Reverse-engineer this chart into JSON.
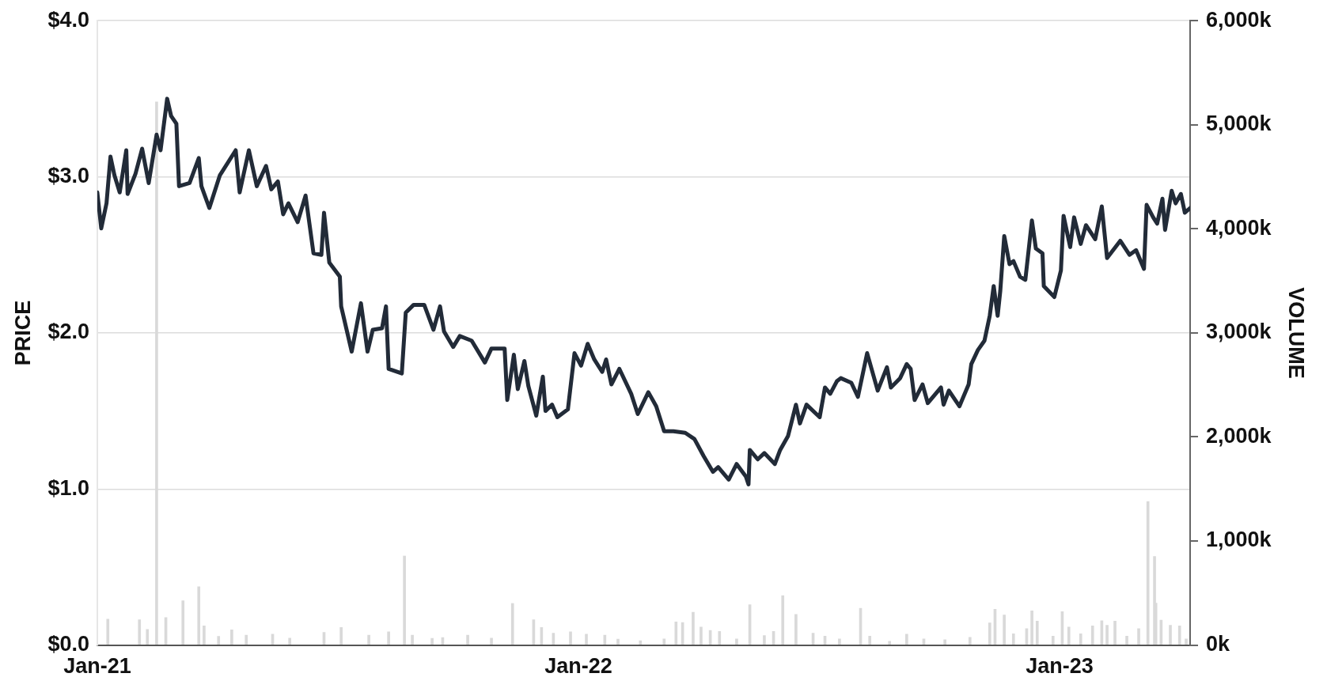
{
  "chart_data": {
    "type": "line",
    "ylabel": "PRICE",
    "y2label": "VOLUME",
    "xlim": [
      "2021-01-01",
      "2023-04-10"
    ],
    "xticks": [
      {
        "value": "2021-01-01",
        "label": "Jan-21"
      },
      {
        "value": "2022-01-01",
        "label": "Jan-22"
      },
      {
        "value": "2023-01-01",
        "label": "Jan-23"
      }
    ],
    "ylim": [
      0,
      4
    ],
    "yticks": [
      {
        "value": 0,
        "label": "$0.0"
      },
      {
        "value": 1,
        "label": "$1.0"
      },
      {
        "value": 2,
        "label": "$2.0"
      },
      {
        "value": 3,
        "label": "$3.0"
      },
      {
        "value": 4,
        "label": "$4.0"
      }
    ],
    "y2lim": [
      0,
      6000
    ],
    "y2ticks": [
      {
        "value": 0,
        "label": "0k"
      },
      {
        "value": 1000,
        "label": "1,000k"
      },
      {
        "value": 2000,
        "label": "2,000k"
      },
      {
        "value": 3000,
        "label": "3,000k"
      },
      {
        "value": 4000,
        "label": "4,000k"
      },
      {
        "value": 5000,
        "label": "5,000k"
      },
      {
        "value": 6000,
        "label": "6,000k"
      }
    ],
    "grid": "y",
    "legend": false,
    "marker": "none",
    "line_style": "solid",
    "series": [
      {
        "type": "bar",
        "axis": "y2",
        "color": "#d9d9d9",
        "x": [
          "2021-01-09",
          "2021-02-02",
          "2021-02-08",
          "2021-02-15",
          "2021-02-22",
          "2021-03-07",
          "2021-03-19",
          "2021-03-23",
          "2021-04-03",
          "2021-04-13",
          "2021-04-24",
          "2021-05-14",
          "2021-05-27",
          "2021-06-22",
          "2021-07-05",
          "2021-07-26",
          "2021-08-10",
          "2021-08-22",
          "2021-08-28",
          "2021-09-12",
          "2021-09-20",
          "2021-10-09",
          "2021-10-27",
          "2021-11-12",
          "2021-11-28",
          "2021-12-04",
          "2021-12-13",
          "2021-12-26",
          "2022-01-07",
          "2022-01-21",
          "2022-01-31",
          "2022-02-17",
          "2022-03-07",
          "2022-03-16",
          "2022-03-21",
          "2022-03-29",
          "2022-04-04",
          "2022-04-11",
          "2022-04-18",
          "2022-05-01",
          "2022-05-11",
          "2022-05-22",
          "2022-05-29",
          "2022-06-05",
          "2022-06-15",
          "2022-06-28",
          "2022-07-07",
          "2022-07-18",
          "2022-08-03",
          "2022-08-10",
          "2022-08-25",
          "2022-09-07",
          "2022-09-20",
          "2022-10-06",
          "2022-10-25",
          "2022-11-09",
          "2022-11-13",
          "2022-11-20",
          "2022-11-27",
          "2022-12-07",
          "2022-12-11",
          "2022-12-15",
          "2022-12-27",
          "2023-01-03",
          "2023-01-08",
          "2023-01-17",
          "2023-01-26",
          "2023-02-02",
          "2023-02-06",
          "2023-02-12",
          "2023-02-21",
          "2023-03-02",
          "2023-03-09",
          "2023-03-14",
          "2023-03-15",
          "2023-03-19",
          "2023-03-26",
          "2023-04-02",
          "2023-04-07"
        ],
        "values": [
          250,
          243,
          150,
          5220,
          265,
          425,
          560,
          185,
          83,
          147,
          96,
          105,
          67,
          121,
          170,
          96,
          128,
          856,
          96,
          64,
          73,
          96,
          67,
          400,
          243,
          170,
          115,
          128,
          105,
          96,
          58,
          42,
          59,
          223,
          216,
          315,
          174,
          141,
          131,
          59,
          387,
          92,
          131,
          475,
          295,
          115,
          85,
          59,
          354,
          85,
          36,
          105,
          59,
          52,
          75,
          213,
          344,
          289,
          108,
          157,
          328,
          230,
          85,
          321,
          174,
          108,
          184,
          233,
          190,
          230,
          85,
          157,
          1380,
          852,
          403,
          239,
          190,
          184,
          59
        ]
      },
      {
        "axis": "y",
        "color": "#222b38",
        "x": [
          "2021-01-01",
          "2021-01-04",
          "2021-01-08",
          "2021-01-11",
          "2021-01-14",
          "2021-01-18",
          "2021-01-23",
          "2021-01-24",
          "2021-01-30",
          "2021-02-04",
          "2021-02-09",
          "2021-02-15",
          "2021-02-18",
          "2021-02-23",
          "2021-02-26",
          "2021-03-02",
          "2021-03-04",
          "2021-03-12",
          "2021-03-19",
          "2021-03-21",
          "2021-03-27",
          "2021-04-04",
          "2021-04-16",
          "2021-04-19",
          "2021-04-26",
          "2021-05-02",
          "2021-05-09",
          "2021-05-13",
          "2021-05-18",
          "2021-05-22",
          "2021-05-26",
          "2021-06-02",
          "2021-06-08",
          "2021-06-14",
          "2021-06-20",
          "2021-06-22",
          "2021-06-26",
          "2021-07-04",
          "2021-07-05",
          "2021-07-13",
          "2021-07-20",
          "2021-07-25",
          "2021-07-29",
          "2021-08-05",
          "2021-08-08",
          "2021-08-10",
          "2021-08-20",
          "2021-08-23",
          "2021-08-29",
          "2021-09-06",
          "2021-09-13",
          "2021-09-18",
          "2021-09-21",
          "2021-09-28",
          "2021-10-03",
          "2021-10-12",
          "2021-10-22",
          "2021-10-27",
          "2021-11-06",
          "2021-11-08",
          "2021-11-13",
          "2021-11-16",
          "2021-11-21",
          "2021-11-24",
          "2021-11-30",
          "2021-12-05",
          "2021-12-07",
          "2021-12-12",
          "2021-12-16",
          "2021-12-24",
          "2021-12-29",
          "2022-01-03",
          "2022-01-08",
          "2022-01-13",
          "2022-01-19",
          "2022-01-22",
          "2022-01-26",
          "2022-02-01",
          "2022-02-10",
          "2022-02-15",
          "2022-02-23",
          "2022-03-01",
          "2022-03-07",
          "2022-03-14",
          "2022-03-23",
          "2022-03-30",
          "2022-04-06",
          "2022-04-13",
          "2022-04-17",
          "2022-04-25",
          "2022-05-01",
          "2022-05-08",
          "2022-05-10",
          "2022-05-11",
          "2022-05-17",
          "2022-05-22",
          "2022-05-30",
          "2022-06-03",
          "2022-06-09",
          "2022-06-15",
          "2022-06-18",
          "2022-06-23",
          "2022-07-03",
          "2022-07-07",
          "2022-07-11",
          "2022-07-16",
          "2022-07-19",
          "2022-07-27",
          "2022-08-01",
          "2022-08-08",
          "2022-08-16",
          "2022-08-23",
          "2022-08-26",
          "2022-09-02",
          "2022-09-07",
          "2022-09-10",
          "2022-09-13",
          "2022-09-19",
          "2022-09-23",
          "2022-10-03",
          "2022-10-05",
          "2022-10-09",
          "2022-10-17",
          "2022-10-24",
          "2022-10-26",
          "2022-10-31",
          "2022-11-05",
          "2022-11-09",
          "2022-11-12",
          "2022-11-15",
          "2022-11-17",
          "2022-11-20",
          "2022-11-24",
          "2022-11-27",
          "2022-12-02",
          "2022-12-06",
          "2022-12-11",
          "2022-12-14",
          "2022-12-19",
          "2022-12-20",
          "2022-12-28",
          "2023-01-02",
          "2023-01-04",
          "2023-01-09",
          "2023-01-12",
          "2023-01-17",
          "2023-01-21",
          "2023-01-28",
          "2023-02-02",
          "2023-02-06",
          "2023-02-16",
          "2023-02-23",
          "2023-02-28",
          "2023-03-06",
          "2023-03-08",
          "2023-03-13",
          "2023-03-16",
          "2023-03-20",
          "2023-03-22",
          "2023-03-27",
          "2023-03-30",
          "2023-04-03",
          "2023-04-06",
          "2023-04-10"
        ],
        "values": [
          2.9,
          2.67,
          2.83,
          3.13,
          3.01,
          2.9,
          3.17,
          2.89,
          3.02,
          3.18,
          2.96,
          3.27,
          3.17,
          3.5,
          3.39,
          3.34,
          2.94,
          2.96,
          3.12,
          2.94,
          2.8,
          3.01,
          3.17,
          2.9,
          3.17,
          2.94,
          3.07,
          2.92,
          2.97,
          2.76,
          2.83,
          2.71,
          2.88,
          2.51,
          2.5,
          2.77,
          2.45,
          2.36,
          2.17,
          1.88,
          2.19,
          1.88,
          2.02,
          2.03,
          2.17,
          1.77,
          1.74,
          2.13,
          2.18,
          2.18,
          2.02,
          2.17,
          2.01,
          1.91,
          1.98,
          1.95,
          1.81,
          1.9,
          1.9,
          1.57,
          1.86,
          1.64,
          1.82,
          1.66,
          1.47,
          1.72,
          1.5,
          1.54,
          1.46,
          1.51,
          1.87,
          1.79,
          1.93,
          1.83,
          1.75,
          1.83,
          1.67,
          1.77,
          1.61,
          1.48,
          1.62,
          1.53,
          1.37,
          1.37,
          1.36,
          1.32,
          1.21,
          1.11,
          1.14,
          1.06,
          1.16,
          1.08,
          1.03,
          1.25,
          1.19,
          1.23,
          1.16,
          1.25,
          1.34,
          1.54,
          1.42,
          1.54,
          1.46,
          1.65,
          1.61,
          1.69,
          1.71,
          1.68,
          1.59,
          1.87,
          1.63,
          1.78,
          1.65,
          1.71,
          1.8,
          1.77,
          1.57,
          1.67,
          1.55,
          1.65,
          1.54,
          1.63,
          1.53,
          1.67,
          1.8,
          1.89,
          1.95,
          2.11,
          2.3,
          2.11,
          2.27,
          2.62,
          2.44,
          2.46,
          2.36,
          2.34,
          2.72,
          2.54,
          2.51,
          2.3,
          2.23,
          2.4,
          2.75,
          2.55,
          2.74,
          2.57,
          2.69,
          2.6,
          2.81,
          2.48,
          2.59,
          2.5,
          2.53,
          2.41,
          2.82,
          2.74,
          2.7,
          2.86,
          2.66,
          2.91,
          2.83,
          2.89,
          2.77,
          2.8
        ]
      }
    ]
  }
}
